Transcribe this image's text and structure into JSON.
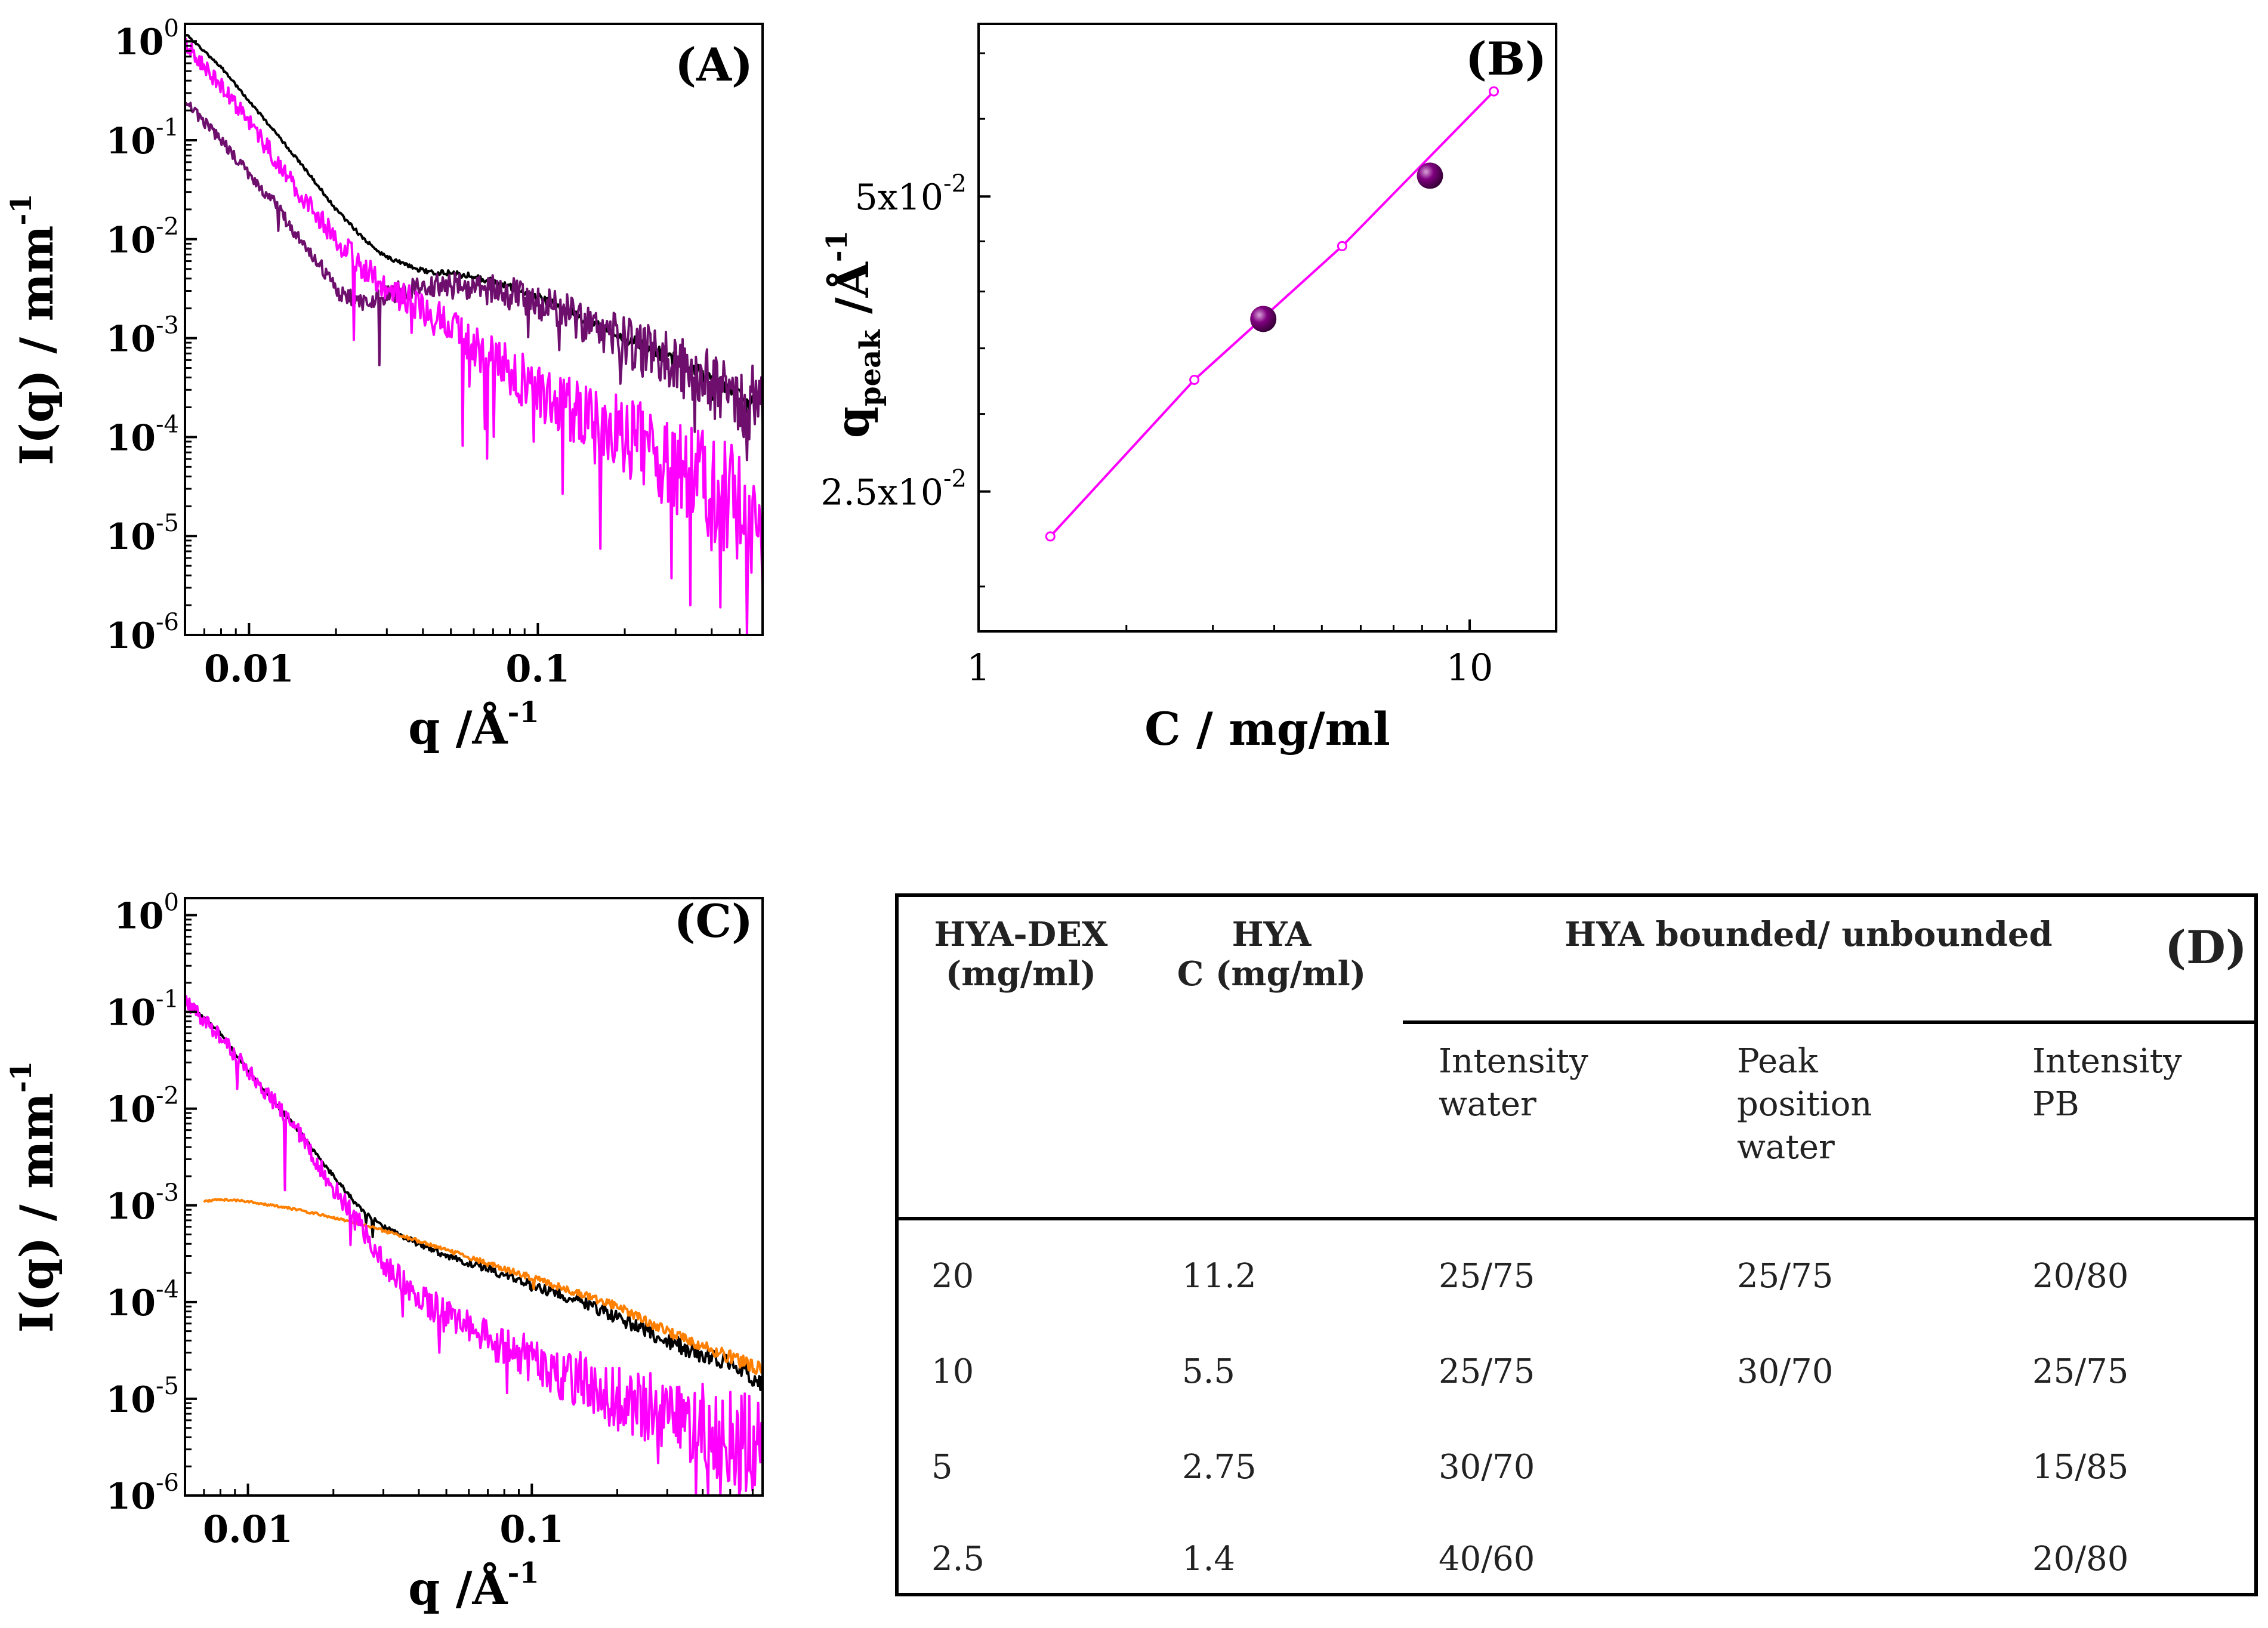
{
  "chart_data": [
    {
      "type": "line",
      "panel_label": "(A)",
      "xlabel": "q /Å",
      "xlabel_sup": "-1",
      "ylabel": "I(q) / mm",
      "ylabel_sup": "-1",
      "xscale": "log",
      "yscale": "log",
      "xlim": [
        0.006,
        0.6
      ],
      "ylim": [
        1e-06,
        1.5
      ],
      "x_ticks": [
        {
          "value": 0.01,
          "label": "0.01"
        },
        {
          "value": 0.1,
          "label": "0.1"
        }
      ],
      "y_ticks": [
        {
          "value": 1,
          "base": "10",
          "exp": "0"
        },
        {
          "value": 0.1,
          "base": "10",
          "exp": "-1"
        },
        {
          "value": 0.01,
          "base": "10",
          "exp": "-2"
        },
        {
          "value": 0.001,
          "base": "10",
          "exp": "-3"
        },
        {
          "value": 0.0001,
          "base": "10",
          "exp": "-4"
        },
        {
          "value": 1e-05,
          "base": "10",
          "exp": "-5"
        },
        {
          "value": 1e-06,
          "base": "10",
          "exp": "-6"
        }
      ],
      "series": [
        {
          "color": "#000000",
          "noise": 0.05,
          "x": [
            0.006,
            0.008,
            0.01,
            0.015,
            0.02,
            0.025,
            0.03,
            0.04,
            0.05,
            0.06,
            0.08,
            0.1,
            0.15,
            0.2,
            0.3,
            0.4,
            0.5,
            0.6
          ],
          "y": [
            1.2,
            0.55,
            0.25,
            0.06,
            0.02,
            0.01,
            0.0065,
            0.0048,
            0.0045,
            0.0042,
            0.0033,
            0.0026,
            0.0015,
            0.001,
            0.0006,
            0.0004,
            0.00025,
            0.0002
          ]
        },
        {
          "color": "#6e0f6e",
          "noise": 0.22,
          "x": [
            0.006,
            0.008,
            0.01,
            0.012,
            0.015,
            0.018,
            0.02,
            0.025,
            0.03,
            0.04,
            0.05,
            0.06,
            0.08,
            0.1,
            0.15,
            0.2,
            0.3,
            0.4,
            0.5,
            0.6
          ],
          "y": [
            0.25,
            0.1,
            0.045,
            0.025,
            0.01,
            0.005,
            0.003,
            0.0022,
            0.0028,
            0.0033,
            0.0034,
            0.0033,
            0.0028,
            0.0024,
            0.0014,
            0.0009,
            0.00055,
            0.00035,
            0.00025,
            0.0002
          ]
        },
        {
          "color": "#ff00ff",
          "noise": 0.35,
          "x": [
            0.006,
            0.008,
            0.01,
            0.015,
            0.02,
            0.025,
            0.03,
            0.04,
            0.05,
            0.07,
            0.1,
            0.15,
            0.2,
            0.3,
            0.4,
            0.5,
            0.6
          ],
          "y": [
            1.0,
            0.35,
            0.15,
            0.03,
            0.01,
            0.005,
            0.003,
            0.002,
            0.0012,
            0.0006,
            0.0003,
            0.00015,
            0.0001,
            6e-05,
            3e-05,
            2e-05,
            1e-05
          ]
        }
      ]
    },
    {
      "type": "line",
      "panel_label": "(B)",
      "xlabel": "C / mg/ml",
      "ylabel": "q",
      "ylabel_sub": "peak",
      "ylabel_tail": "/Å",
      "ylabel_sup": "-1",
      "xscale": "log",
      "yscale": "log",
      "xlim": [
        1,
        15
      ],
      "ylim": [
        0.018,
        0.075
      ],
      "x_ticks": [
        {
          "value": 1,
          "label": "1"
        },
        {
          "value": 10,
          "label": "10"
        }
      ],
      "y_ticks": [
        {
          "value": 0.05,
          "base": "5x10",
          "exp": "-2"
        },
        {
          "value": 0.025,
          "base": "2.5x10",
          "exp": "-2"
        }
      ],
      "line": {
        "color": "#ff00ff",
        "x": [
          1.4,
          2.75,
          5.5,
          11.2
        ],
        "y": [
          0.0225,
          0.0325,
          0.0445,
          0.064
        ]
      },
      "points": {
        "color": "#800080",
        "x": [
          3.8,
          8.3
        ],
        "y": [
          0.0375,
          0.0525
        ]
      }
    },
    {
      "type": "line",
      "panel_label": "(C)",
      "xlabel": "q /Å",
      "xlabel_sup": "-1",
      "ylabel": "I(q) / mm",
      "ylabel_sup": "-1",
      "xscale": "log",
      "yscale": "log",
      "xlim": [
        0.006,
        0.65
      ],
      "ylim": [
        1e-06,
        1.5
      ],
      "x_ticks": [
        {
          "value": 0.01,
          "label": "0.01"
        },
        {
          "value": 0.1,
          "label": "0.1"
        }
      ],
      "y_ticks": [
        {
          "value": 1,
          "base": "10",
          "exp": "0"
        },
        {
          "value": 0.1,
          "base": "10",
          "exp": "-1"
        },
        {
          "value": 0.01,
          "base": "10",
          "exp": "-2"
        },
        {
          "value": 0.001,
          "base": "10",
          "exp": "-3"
        },
        {
          "value": 0.0001,
          "base": "10",
          "exp": "-4"
        },
        {
          "value": 1e-05,
          "base": "10",
          "exp": "-5"
        },
        {
          "value": 1e-06,
          "base": "10",
          "exp": "-6"
        }
      ],
      "series": [
        {
          "color": "#000000",
          "noise": 0.06,
          "x": [
            0.006,
            0.008,
            0.01,
            0.015,
            0.02,
            0.025,
            0.03,
            0.04,
            0.05,
            0.07,
            0.1,
            0.15,
            0.2,
            0.3,
            0.4,
            0.5,
            0.65
          ],
          "y": [
            0.13,
            0.06,
            0.025,
            0.006,
            0.002,
            0.0009,
            0.0006,
            0.0004,
            0.0003,
            0.00022,
            0.00015,
            0.0001,
            7e-05,
            4e-05,
            2.8e-05,
            2.2e-05,
            1.5e-05
          ]
        },
        {
          "color": "#ff7f00",
          "noise": 0.04,
          "x": [
            0.007,
            0.008,
            0.01,
            0.015,
            0.02,
            0.03,
            0.05,
            0.07,
            0.1,
            0.15,
            0.2,
            0.3,
            0.4,
            0.5,
            0.65
          ],
          "y": [
            0.0011,
            0.00115,
            0.0011,
            0.0009,
            0.00075,
            0.00055,
            0.00035,
            0.00025,
            0.00018,
            0.00012,
            9e-05,
            5e-05,
            3.5e-05,
            2.7e-05,
            2e-05
          ]
        },
        {
          "color": "#ff00ff",
          "noise": 0.3,
          "x": [
            0.006,
            0.008,
            0.01,
            0.015,
            0.02,
            0.025,
            0.03,
            0.04,
            0.05,
            0.07,
            0.1,
            0.15,
            0.2,
            0.3,
            0.4,
            0.5,
            0.65
          ],
          "y": [
            0.13,
            0.055,
            0.025,
            0.006,
            0.0015,
            0.0006,
            0.00025,
            0.00012,
            7e-05,
            4e-05,
            2.5e-05,
            1.5e-05,
            1e-05,
            7e-06,
            5e-06,
            4e-06,
            3e-06
          ]
        }
      ]
    },
    {
      "type": "table",
      "panel_label": "(D)",
      "headers": {
        "col1": [
          "HYA-DEX",
          "(mg/ml)"
        ],
        "col2": [
          "HYA",
          "C (mg/ml)"
        ],
        "group": "HYA bounded/ unbounded",
        "sub1": [
          "Intensity",
          "water"
        ],
        "sub2": [
          "Peak",
          "position",
          "water"
        ],
        "sub3": [
          "Intensity",
          "PB"
        ]
      },
      "rows": [
        [
          "20",
          "11.2",
          "25/75",
          "25/75",
          "20/80"
        ],
        [
          "10",
          "5.5",
          "25/75",
          "30/70",
          "25/75"
        ],
        [
          "5",
          "2.75",
          "30/70",
          "",
          "15/85"
        ],
        [
          "2.5",
          "1.4",
          "40/60",
          "",
          "20/80"
        ]
      ]
    }
  ]
}
